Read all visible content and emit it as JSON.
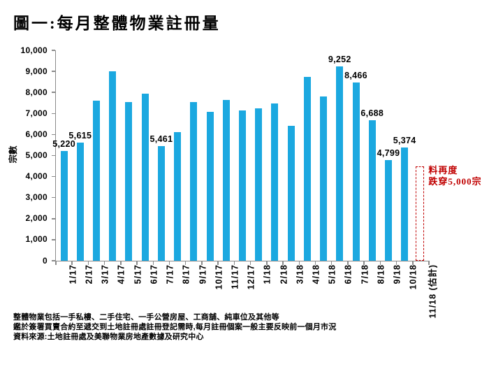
{
  "title": "圖一:每月整體物業註冊量",
  "chart_data": {
    "type": "bar",
    "title": "圖一:每月整體物業註冊量",
    "xlabel": "",
    "ylabel": "宗數",
    "ylim": [
      0,
      10000
    ],
    "grid": false,
    "legend": "none",
    "bar_color": "#1BA8E0",
    "axis_color": "#8a8a8a",
    "y_ticks": [
      "10,000",
      "9,000",
      "8,000",
      "7,000",
      "6,000",
      "5,000",
      "4,000",
      "3,000",
      "2,000",
      "1,000",
      "0"
    ],
    "categories": [
      "1/17",
      "2/17",
      "3/17",
      "4/17",
      "5/17",
      "6/17",
      "7/17",
      "8/17",
      "9/17",
      "10/17",
      "11/17",
      "12/17",
      "1/18",
      "2/18",
      "3/18",
      "4/18",
      "5/18",
      "6/18",
      "7/18",
      "8/18",
      "9/18",
      "10/18",
      "11/18 (估計)"
    ],
    "values": [
      5220,
      5615,
      7620,
      9000,
      7530,
      7950,
      5461,
      6130,
      7530,
      7070,
      7640,
      7140,
      7230,
      7460,
      6400,
      8750,
      7800,
      9252,
      8466,
      6688,
      4799,
      5374,
      null
    ],
    "data_labels": [
      "5,220",
      "5,615",
      "",
      "",
      "",
      "",
      "5,461",
      "",
      "",
      "",
      "",
      "",
      "",
      "",
      "",
      "",
      "",
      "9,252",
      "8,466",
      "6,688",
      "4,799",
      "5,374",
      ""
    ]
  },
  "estimate": {
    "category": "11/18 (估計)",
    "box_top_value": 4500,
    "note_line1": "料再度",
    "note_line2": "跌穿5,000宗",
    "color": "#C00000"
  },
  "footer": {
    "line1": "整體物業包括一手私樓、二手住宅、一手公營房屋、工商舖、純車位及其他等",
    "line2": "鑑於簽署買賣合約至遞交到土地註冊處註冊登記需時,每月註冊個案一般主要反映前一個月市況",
    "line3": "資料來源:土地註冊處及美聯物業房地產數據及研究中心"
  }
}
